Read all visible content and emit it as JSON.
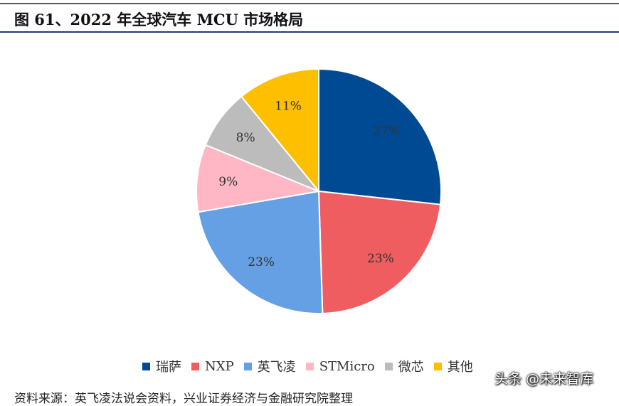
{
  "header": {
    "title": "图 61、2022 年全球汽车 MCU 市场格局"
  },
  "chart_data": {
    "type": "pie",
    "slices": [
      {
        "name": "瑞萨",
        "value": 27,
        "label": "27%",
        "color": "#004a94"
      },
      {
        "name": "NXP",
        "value": 23,
        "label": "23%",
        "color": "#ef5d60"
      },
      {
        "name": "英飞凌",
        "value": 23,
        "label": "23%",
        "color": "#64a0e3"
      },
      {
        "name": "STMicro",
        "value": 9,
        "label": "9%",
        "color": "#ffb7c5"
      },
      {
        "name": "微芯",
        "value": 8,
        "label": "8%",
        "color": "#bcbcbc"
      },
      {
        "name": "其他",
        "value": 11,
        "label": "11%",
        "color": "#fdbf00"
      }
    ],
    "legend_position": "bottom"
  },
  "footer": {
    "source": "资料来源：英飞凌法说会资料，兴业证券经济与金融研究院整理",
    "watermark": "头条 @未来智库"
  }
}
